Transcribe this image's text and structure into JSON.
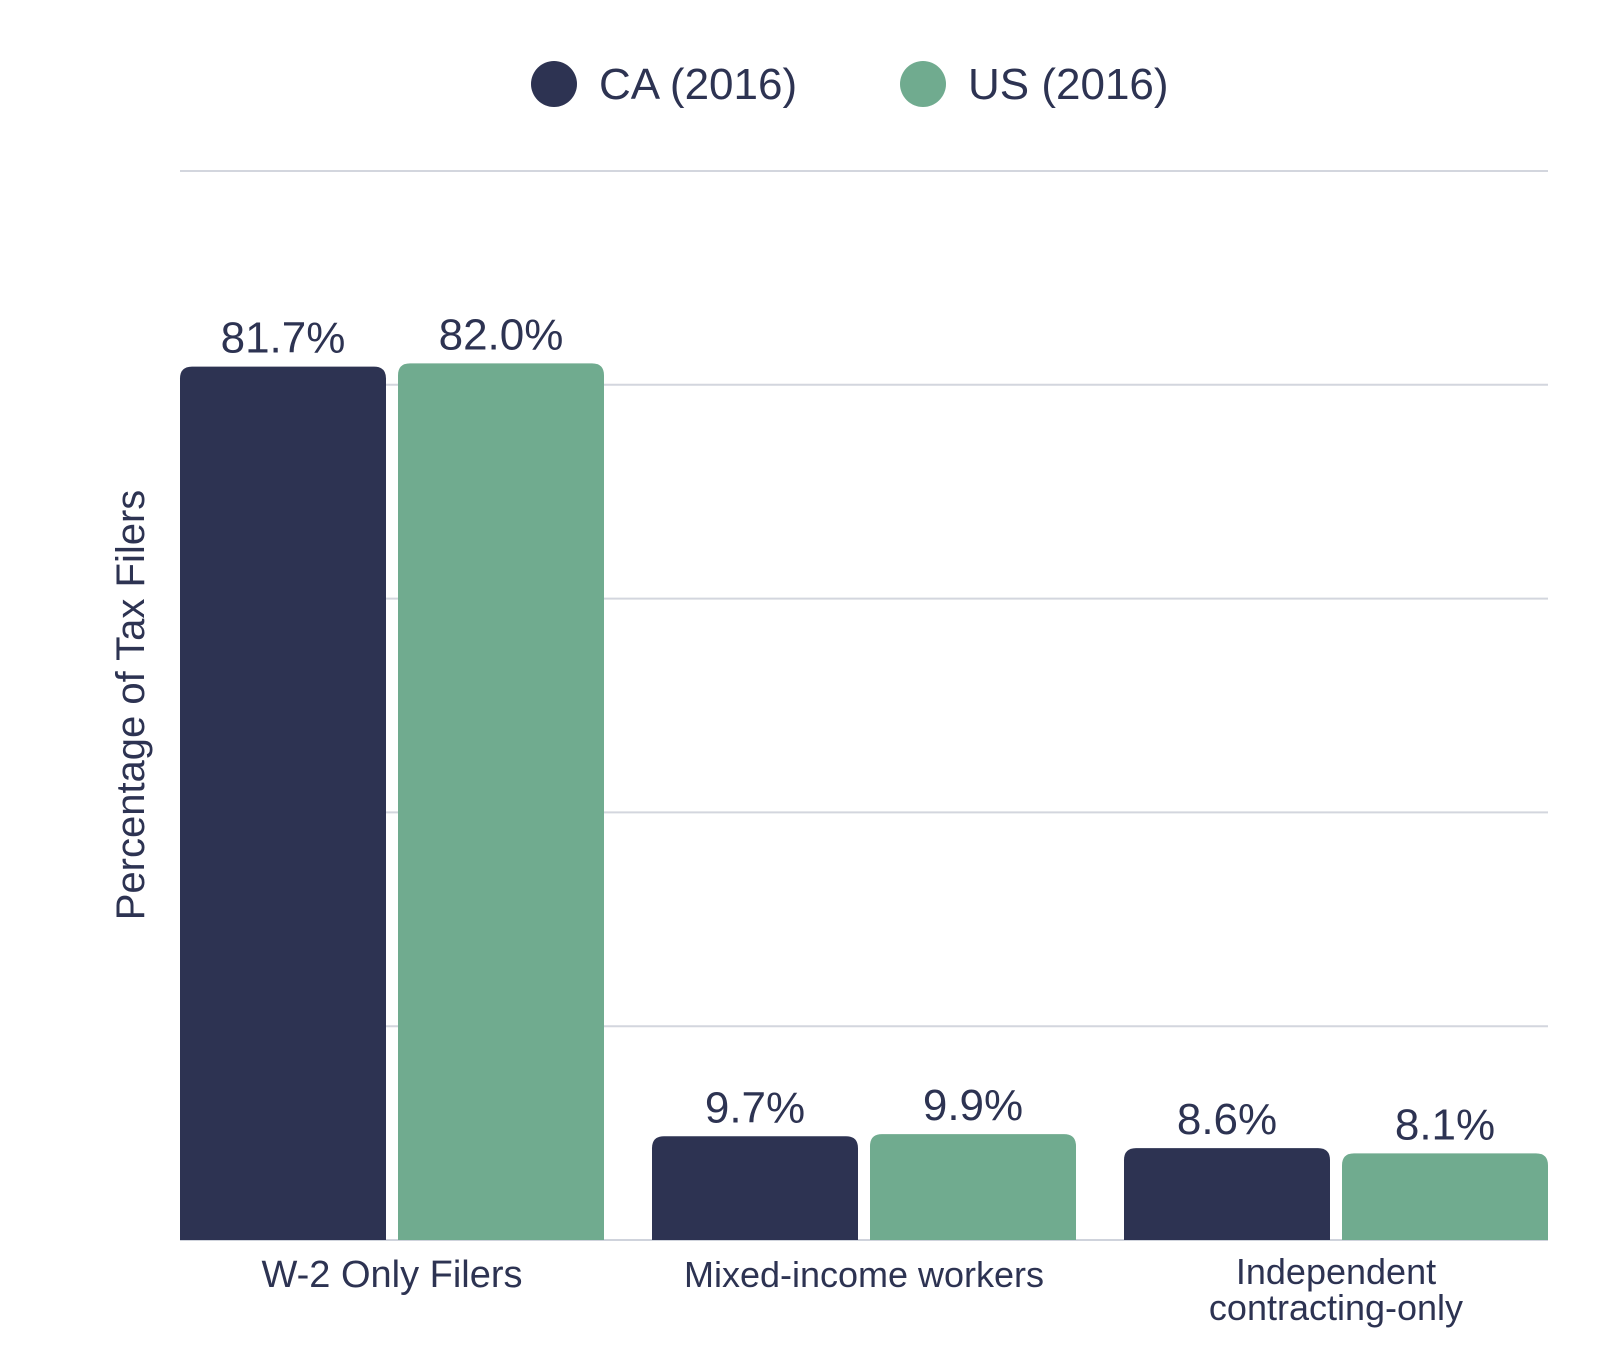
{
  "chart_data": {
    "type": "bar",
    "categories": [
      [
        "W-2 Only Filers"
      ],
      [
        "Mixed-income workers"
      ],
      [
        "Independent",
        "contracting-only"
      ]
    ],
    "series": [
      {
        "name": "CA (2016)",
        "color": "#2d3352",
        "values": [
          81.7,
          9.7,
          8.6
        ],
        "labels": [
          "81.7%",
          "9.7%",
          "8.6%"
        ]
      },
      {
        "name": "US (2016)",
        "color": "#70ab8f",
        "values": [
          82.0,
          9.9,
          8.1
        ],
        "labels": [
          "82.0%",
          "9.9%",
          "8.1%"
        ]
      }
    ],
    "ylabel": "Percentage of Tax Filers",
    "xlabel": "",
    "ylim": [
      0,
      100
    ],
    "yticks": [
      0,
      20,
      40,
      60,
      80,
      100
    ],
    "show_tick_labels": false,
    "grid": true,
    "legend_position": "top-center"
  }
}
